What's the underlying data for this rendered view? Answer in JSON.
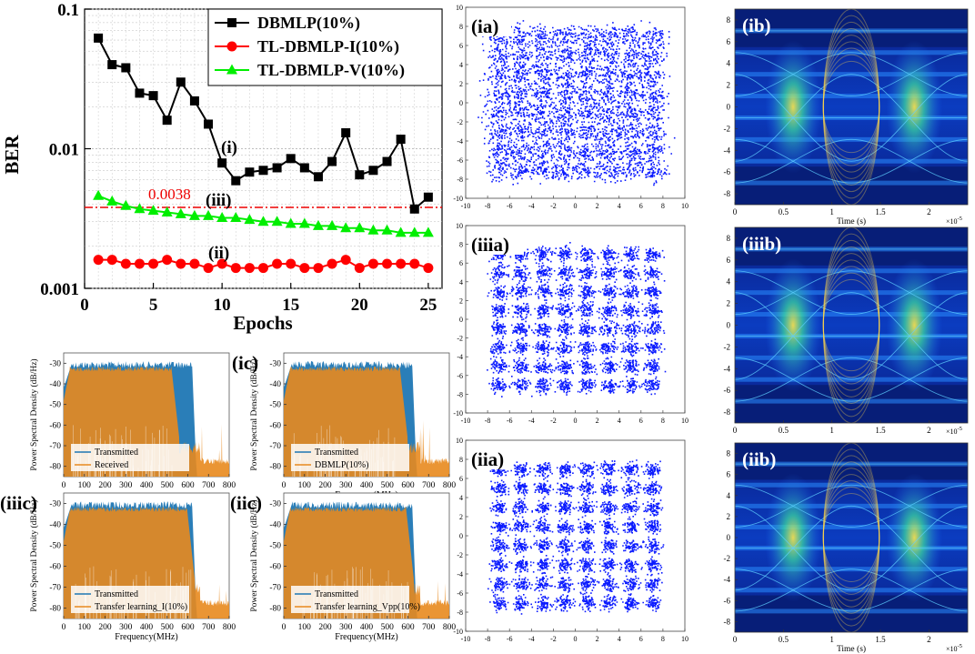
{
  "chart_data": [
    {
      "id": "ber",
      "type": "line",
      "xlabel": "Epochs",
      "ylabel": "BER",
      "yscale": "log",
      "xlim": [
        0,
        26
      ],
      "ylim": [
        0.001,
        0.1
      ],
      "xticks": [
        0,
        5,
        10,
        15,
        20,
        25
      ],
      "yticks": [
        0.001,
        0.01,
        0.1
      ],
      "ytick_labels": [
        "0.001",
        "0.01",
        "0.1"
      ],
      "x": [
        1,
        2,
        3,
        4,
        5,
        6,
        7,
        8,
        9,
        10,
        11,
        12,
        13,
        14,
        15,
        16,
        17,
        18,
        19,
        20,
        21,
        22,
        23,
        24,
        25
      ],
      "series": [
        {
          "name": "DBMLP(10%)",
          "color": "#000000",
          "marker": "square",
          "values": [
            0.062,
            0.04,
            0.038,
            0.025,
            0.024,
            0.016,
            0.03,
            0.022,
            0.015,
            0.0079,
            0.0059,
            0.0068,
            0.007,
            0.0073,
            0.0085,
            0.0073,
            0.0063,
            0.0081,
            0.013,
            0.0065,
            0.007,
            0.0081,
            0.0117,
            0.0037,
            0.0045
          ]
        },
        {
          "name": "TL-DBMLP-I(10%)",
          "color": "#ff0000",
          "marker": "circle",
          "values": [
            0.0016,
            0.0016,
            0.0015,
            0.0015,
            0.0015,
            0.0016,
            0.0015,
            0.0015,
            0.0014,
            0.0015,
            0.0014,
            0.0014,
            0.0014,
            0.0015,
            0.0015,
            0.0014,
            0.0014,
            0.0015,
            0.0016,
            0.0014,
            0.0015,
            0.0015,
            0.0015,
            0.0015,
            0.0014
          ]
        },
        {
          "name": "TL-DBMLP-V(10%)",
          "color": "#00ee00",
          "marker": "triangle",
          "values": [
            0.0046,
            0.0042,
            0.0039,
            0.0037,
            0.0036,
            0.0035,
            0.0034,
            0.0033,
            0.0033,
            0.0032,
            0.0032,
            0.0031,
            0.003,
            0.003,
            0.0029,
            0.0029,
            0.0028,
            0.0028,
            0.0027,
            0.0027,
            0.0026,
            0.0026,
            0.0025,
            0.0025,
            0.0025
          ]
        }
      ],
      "threshold": {
        "value": 0.0038,
        "label": "0.0038",
        "color": "#ee0000"
      },
      "annotations": [
        "(i)",
        "(iii)",
        "(ii)"
      ]
    },
    {
      "id": "psd",
      "type": "area",
      "xlabel": "Frequency(MHz)",
      "ylabel": "Power Spectral Density (dB/Hz)",
      "xlim": [
        0,
        800
      ],
      "ylim": [
        -85,
        -25
      ],
      "xticks": [
        0,
        100,
        200,
        300,
        400,
        500,
        600,
        700,
        800
      ],
      "yticks": [
        -30,
        -40,
        -50,
        -60,
        -70,
        -80
      ],
      "transmitted_color": "#1f77b4",
      "received_color": "#e8891e",
      "panels": [
        {
          "label": "",
          "legend": [
            "Transmitted",
            "Received"
          ],
          "rx_cutoff_mhz": 560
        },
        {
          "label": "(ic)",
          "legend": [
            "Transmitted",
            "DBMLP(10%)"
          ],
          "rx_cutoff_mhz": 600
        },
        {
          "label": "(iiic)",
          "legend": [
            "Transmitted",
            "Transfer learning_I(10%)"
          ],
          "rx_cutoff_mhz": 635
        },
        {
          "label": "(iic)",
          "legend": [
            "Transmitted",
            "Transfer learning_Vpp(10%)"
          ],
          "rx_cutoff_mhz": 630
        }
      ]
    },
    {
      "id": "constellations",
      "type": "scatter",
      "xlim": [
        -10,
        10
      ],
      "ylim": [
        -10,
        10
      ],
      "xticks": [
        -10,
        -8,
        -6,
        -4,
        -2,
        0,
        2,
        4,
        6,
        8,
        10
      ],
      "yticks": [
        -10,
        -8,
        -6,
        -4,
        -2,
        0,
        2,
        4,
        6,
        8,
        10
      ],
      "grid_points": [
        -7,
        -5,
        -3,
        -1,
        1,
        3,
        5,
        7
      ],
      "color": "#0a1aff",
      "panels": [
        {
          "label": "(ia)",
          "spread": 0.55
        },
        {
          "label": "(iiia)",
          "spread": 0.38
        },
        {
          "label": "(iia)",
          "spread": 0.36
        }
      ]
    },
    {
      "id": "eyes",
      "type": "heatmap",
      "xlabel": "Time (s)",
      "xlim": [
        0,
        2.4
      ],
      "ylim": [
        -9,
        9
      ],
      "xticks": [
        0,
        0.5,
        1,
        1.5,
        2
      ],
      "xtick_labels": [
        "0",
        "0.5",
        "1",
        "1.5",
        "2"
      ],
      "yticks": [
        -8,
        -6,
        -4,
        -2,
        0,
        2,
        4,
        6,
        8
      ],
      "x_exponent": "×10",
      "x_exponent_power": "-5",
      "panels": [
        {
          "label": "(ib)"
        },
        {
          "label": "(iiib)"
        },
        {
          "label": "(iib)"
        }
      ]
    }
  ]
}
